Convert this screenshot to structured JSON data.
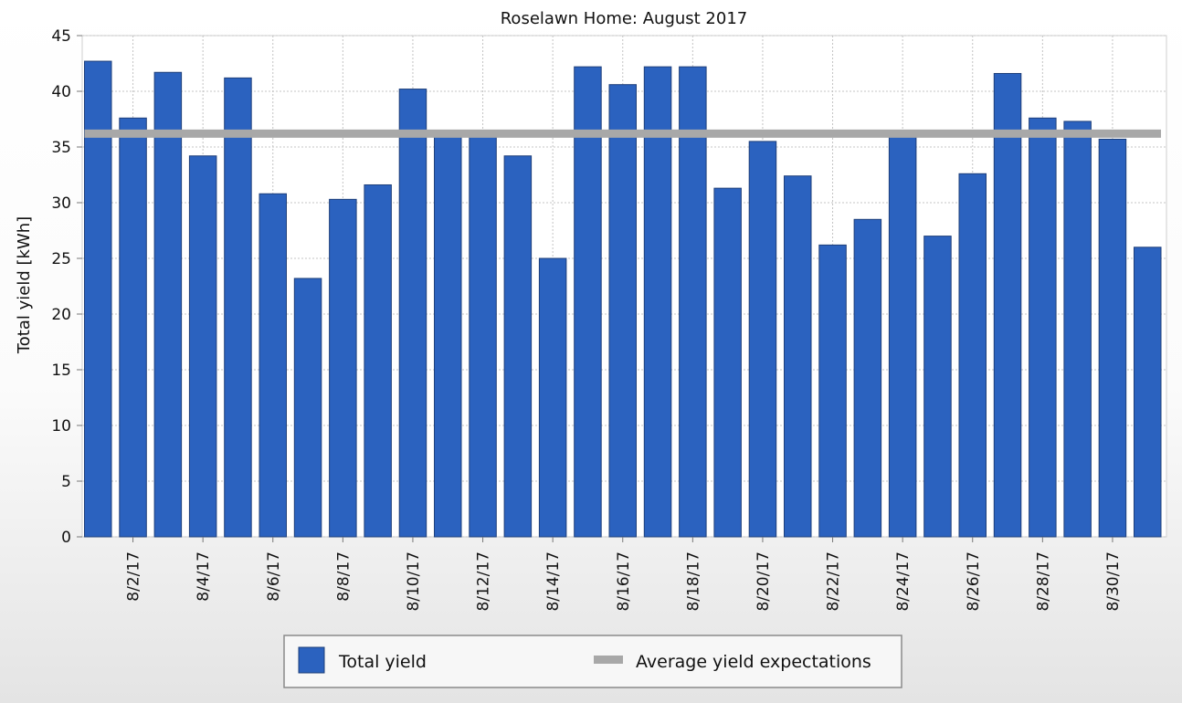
{
  "chart_data": {
    "type": "bar",
    "title": "Roselawn Home: August 2017",
    "xlabel": "",
    "ylabel": "Total yield [kWh]",
    "ylim": [
      0,
      45
    ],
    "yticks": [
      0,
      5,
      10,
      15,
      20,
      25,
      30,
      35,
      40,
      45
    ],
    "grid": true,
    "legend_position": "bottom",
    "categories": [
      "8/1/17",
      "8/2/17",
      "8/3/17",
      "8/4/17",
      "8/5/17",
      "8/6/17",
      "8/7/17",
      "8/8/17",
      "8/9/17",
      "8/10/17",
      "8/11/17",
      "8/12/17",
      "8/13/17",
      "8/14/17",
      "8/15/17",
      "8/16/17",
      "8/17/17",
      "8/18/17",
      "8/19/17",
      "8/20/17",
      "8/21/17",
      "8/22/17",
      "8/23/17",
      "8/24/17",
      "8/25/17",
      "8/26/17",
      "8/27/17",
      "8/28/17",
      "8/29/17",
      "8/30/17",
      "8/31/17"
    ],
    "xtick_labels": [
      "8/2/17",
      "8/4/17",
      "8/6/17",
      "8/8/17",
      "8/10/17",
      "8/12/17",
      "8/14/17",
      "8/16/17",
      "8/18/17",
      "8/20/17",
      "8/22/17",
      "8/24/17",
      "8/26/17",
      "8/28/17",
      "8/30/17"
    ],
    "series": [
      {
        "name": "Total yield",
        "type": "bar",
        "color": "#2b62bf",
        "values": [
          42.7,
          37.6,
          41.7,
          34.2,
          41.2,
          30.8,
          23.2,
          30.3,
          31.6,
          40.2,
          36.2,
          36.0,
          34.2,
          25.0,
          42.2,
          40.6,
          42.2,
          42.2,
          31.3,
          35.5,
          32.4,
          26.2,
          28.5,
          36.5,
          27.0,
          32.6,
          41.6,
          37.6,
          37.3,
          35.7,
          26.0
        ]
      },
      {
        "name": "Average yield expectations",
        "type": "line",
        "color": "#a8a8a8",
        "value": 36.2
      }
    ]
  }
}
